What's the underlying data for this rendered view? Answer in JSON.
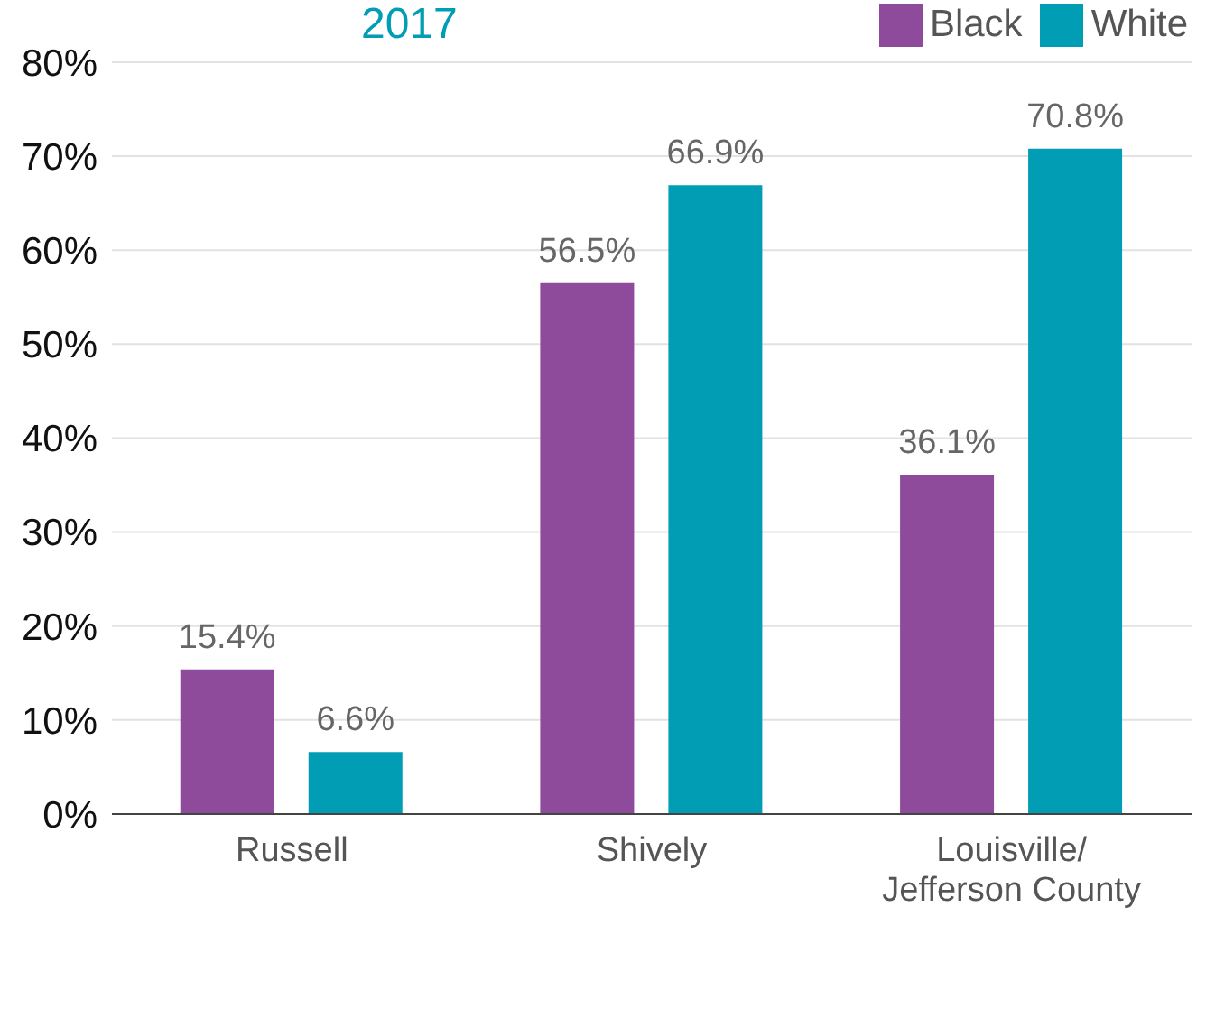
{
  "chart_data": {
    "type": "bar",
    "title": "2017",
    "categories": [
      "Russell",
      "Shively",
      "Louisville/ Jefferson County"
    ],
    "series": [
      {
        "name": "Black",
        "color": "#8e4a9b",
        "values": [
          15.4,
          56.5,
          36.1
        ],
        "value_labels": [
          "15.4%",
          "56.5%",
          "36.1%"
        ]
      },
      {
        "name": "White",
        "color": "#009db5",
        "values": [
          6.6,
          66.9,
          70.8
        ],
        "value_labels": [
          "6.6%",
          "66.9%",
          "70.8%"
        ]
      }
    ],
    "ylim": [
      0,
      80
    ],
    "yticks": [
      {
        "value": 0,
        "label": "0%"
      },
      {
        "value": 10,
        "label": "10%"
      },
      {
        "value": 20,
        "label": "20%"
      },
      {
        "value": 30,
        "label": "30%"
      },
      {
        "value": 40,
        "label": "40%"
      },
      {
        "value": 50,
        "label": "50%"
      },
      {
        "value": 60,
        "label": "60%"
      },
      {
        "value": 70,
        "label": "70%"
      },
      {
        "value": 80,
        "label": "80%"
      }
    ],
    "grid": "y",
    "legend": "top right"
  }
}
